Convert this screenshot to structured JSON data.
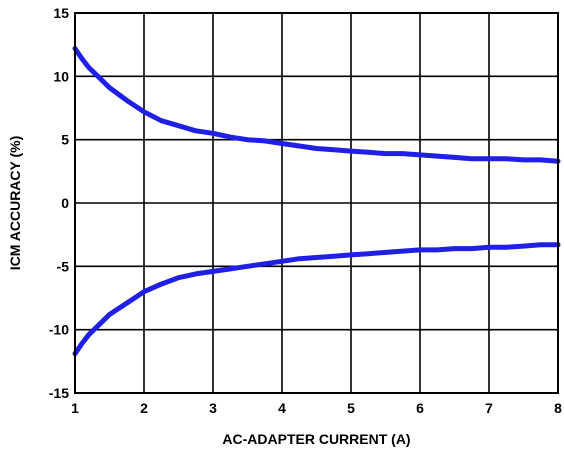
{
  "chart_data": {
    "type": "line",
    "title": "",
    "xlabel": "AC-ADAPTER CURRENT (A)",
    "ylabel": "ICM ACCURACY (%)",
    "xlim": [
      1,
      8
    ],
    "ylim": [
      -15,
      15
    ],
    "x_ticks": [
      1,
      2,
      3,
      4,
      5,
      6,
      7,
      8
    ],
    "y_ticks": [
      15,
      10,
      5,
      0,
      -5,
      -10,
      -15
    ],
    "grid": true,
    "legend": "none",
    "series_color": "#1f1fe6",
    "series": [
      {
        "x": [
          1.0,
          1.1,
          1.2,
          1.35,
          1.5,
          1.75,
          2.0,
          2.25,
          2.5,
          2.75,
          3.0,
          3.25,
          3.5,
          3.75,
          4.0,
          4.25,
          4.5,
          4.75,
          5.0,
          5.25,
          5.5,
          5.75,
          6.0,
          6.25,
          6.5,
          6.75,
          7.0,
          7.25,
          7.5,
          7.75,
          8.0
        ],
        "y": [
          12.2,
          11.4,
          10.7,
          9.9,
          9.1,
          8.1,
          7.2,
          6.5,
          6.1,
          5.7,
          5.5,
          5.2,
          5.0,
          4.9,
          4.7,
          4.5,
          4.3,
          4.2,
          4.1,
          4.0,
          3.9,
          3.9,
          3.8,
          3.7,
          3.6,
          3.5,
          3.5,
          3.5,
          3.4,
          3.4,
          3.3
        ]
      },
      {
        "x": [
          1.0,
          1.1,
          1.2,
          1.35,
          1.5,
          1.75,
          2.0,
          2.25,
          2.5,
          2.75,
          3.0,
          3.25,
          3.5,
          3.75,
          4.0,
          4.25,
          4.5,
          4.75,
          5.0,
          5.25,
          5.5,
          5.75,
          6.0,
          6.25,
          6.5,
          6.75,
          7.0,
          7.25,
          7.5,
          7.75,
          8.0
        ],
        "y": [
          -11.9,
          -11.1,
          -10.4,
          -9.6,
          -8.8,
          -7.9,
          -7.0,
          -6.4,
          -5.9,
          -5.6,
          -5.4,
          -5.2,
          -5.0,
          -4.8,
          -4.6,
          -4.4,
          -4.3,
          -4.2,
          -4.1,
          -4.0,
          -3.9,
          -3.8,
          -3.7,
          -3.7,
          -3.6,
          -3.6,
          -3.5,
          -3.5,
          -3.4,
          -3.3,
          -3.3
        ]
      }
    ]
  }
}
